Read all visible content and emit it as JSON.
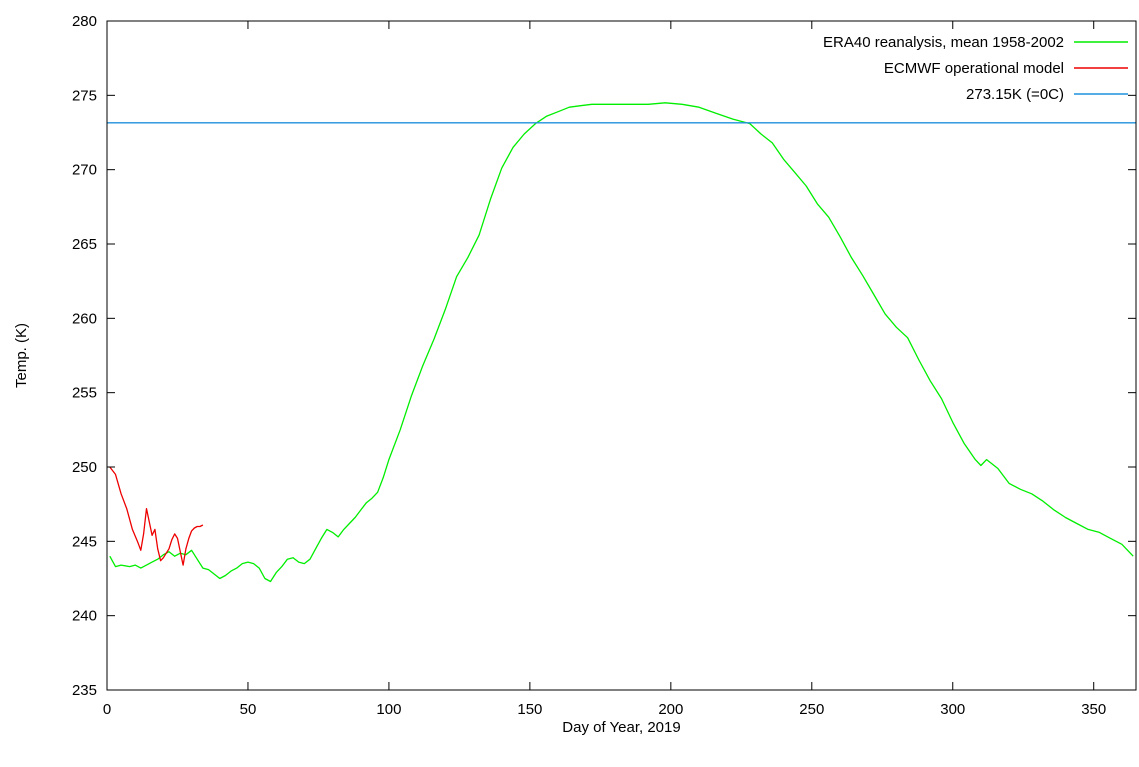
{
  "chart_data": {
    "type": "line",
    "title": "",
    "xlabel": "Day of Year, 2019",
    "ylabel": "Temp. (K)",
    "xlim": [
      0,
      365
    ],
    "ylim": [
      235,
      280
    ],
    "x_ticks": [
      0,
      50,
      100,
      150,
      200,
      250,
      300,
      350
    ],
    "y_ticks": [
      235,
      240,
      245,
      250,
      255,
      260,
      265,
      270,
      275,
      280
    ],
    "grid": false,
    "legend_position": "top-right",
    "series": [
      {
        "name": "ERA40 reanalysis, mean 1958-2002",
        "color": "#00ee00",
        "x": [
          1,
          3,
          5,
          8,
          10,
          12,
          14,
          16,
          18,
          20,
          22,
          24,
          26,
          28,
          30,
          32,
          34,
          36,
          38,
          40,
          42,
          44,
          46,
          48,
          50,
          52,
          54,
          56,
          58,
          60,
          62,
          64,
          66,
          68,
          70,
          72,
          74,
          76,
          78,
          80,
          82,
          84,
          86,
          88,
          90,
          92,
          94,
          96,
          98,
          100,
          104,
          108,
          112,
          116,
          120,
          124,
          128,
          132,
          136,
          140,
          144,
          148,
          152,
          156,
          160,
          164,
          168,
          172,
          176,
          180,
          186,
          192,
          198,
          204,
          210,
          216,
          222,
          228,
          232,
          236,
          240,
          244,
          248,
          252,
          256,
          260,
          264,
          268,
          272,
          276,
          280,
          284,
          288,
          292,
          296,
          300,
          304,
          308,
          310,
          312,
          314,
          316,
          320,
          324,
          328,
          332,
          336,
          340,
          344,
          348,
          352,
          356,
          360,
          364
        ],
        "values": [
          244.0,
          243.3,
          243.4,
          243.3,
          243.4,
          243.2,
          243.4,
          243.6,
          243.8,
          244.1,
          244.3,
          244.0,
          244.2,
          244.1,
          244.4,
          243.8,
          243.2,
          243.1,
          242.8,
          242.5,
          242.7,
          243.0,
          243.2,
          243.5,
          243.6,
          243.5,
          243.2,
          242.5,
          242.3,
          242.9,
          243.3,
          243.8,
          243.9,
          243.6,
          243.5,
          243.8,
          244.5,
          245.2,
          245.8,
          245.6,
          245.3,
          245.8,
          246.2,
          246.6,
          247.1,
          247.6,
          247.9,
          248.3,
          249.3,
          250.5,
          252.5,
          254.8,
          256.8,
          258.6,
          260.6,
          262.8,
          264.1,
          265.6,
          268.0,
          270.1,
          271.5,
          272.4,
          273.1,
          273.6,
          273.9,
          274.2,
          274.3,
          274.4,
          274.4,
          274.4,
          274.4,
          274.4,
          274.5,
          274.4,
          274.2,
          273.8,
          273.4,
          273.1,
          272.4,
          271.8,
          270.7,
          269.8,
          268.9,
          267.7,
          266.8,
          265.5,
          264.1,
          262.9,
          261.6,
          260.3,
          259.4,
          258.7,
          257.2,
          255.8,
          254.6,
          253.0,
          251.6,
          250.5,
          250.1,
          250.5,
          250.2,
          249.9,
          248.9,
          248.5,
          248.2,
          247.7,
          247.1,
          246.6,
          246.2,
          245.8,
          245.6,
          245.2,
          244.8,
          244.0
        ]
      },
      {
        "name": "ECMWF operational model",
        "color": "#ee0000",
        "x": [
          1,
          3,
          5,
          7,
          9,
          11,
          12,
          13,
          14,
          15,
          16,
          17,
          18,
          19,
          20,
          21,
          22,
          23,
          24,
          25,
          26,
          27,
          28,
          29,
          30,
          31,
          32,
          33,
          34
        ],
        "values": [
          250.0,
          249.5,
          248.2,
          247.2,
          245.8,
          244.9,
          244.4,
          245.5,
          247.2,
          246.3,
          245.4,
          245.8,
          244.5,
          243.7,
          243.9,
          244.2,
          244.5,
          245.1,
          245.5,
          245.2,
          244.3,
          243.4,
          244.5,
          245.2,
          245.7,
          245.9,
          246.0,
          246.0,
          246.1
        ]
      },
      {
        "name": "273.15K (=0C)",
        "color": "#1e90dc",
        "x": [
          0,
          365
        ],
        "values": [
          273.15,
          273.15
        ]
      }
    ]
  }
}
